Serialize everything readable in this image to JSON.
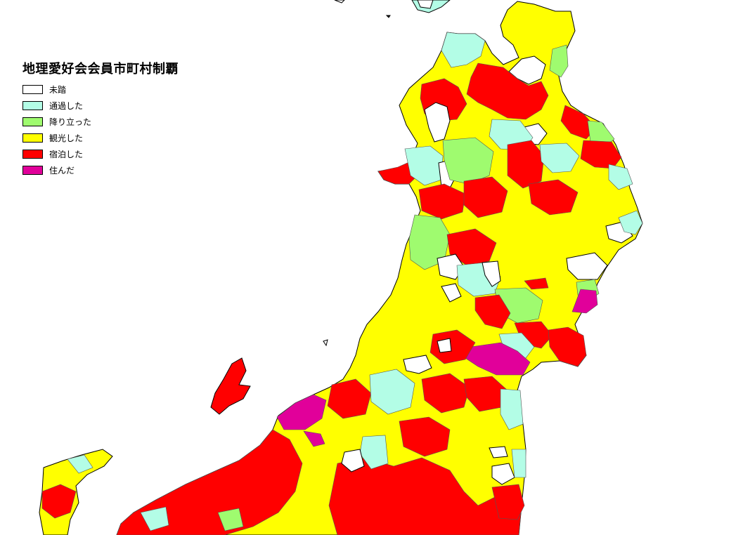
{
  "legend": {
    "title": "地理愛好会会員市町村制覇",
    "items": [
      {
        "label": "未踏",
        "color": "#ffffff"
      },
      {
        "label": "通過した",
        "color": "#b3fde6"
      },
      {
        "label": "降り立った",
        "color": "#9ffb6f"
      },
      {
        "label": "観光した",
        "color": "#ffff00"
      },
      {
        "label": "宿泊した",
        "color": "#ff0000"
      },
      {
        "label": "住んだ",
        "color": "#e1009a"
      }
    ]
  },
  "colors": {
    "background": "#ffffff",
    "boundary": "#555555",
    "outline": "#000000"
  }
}
